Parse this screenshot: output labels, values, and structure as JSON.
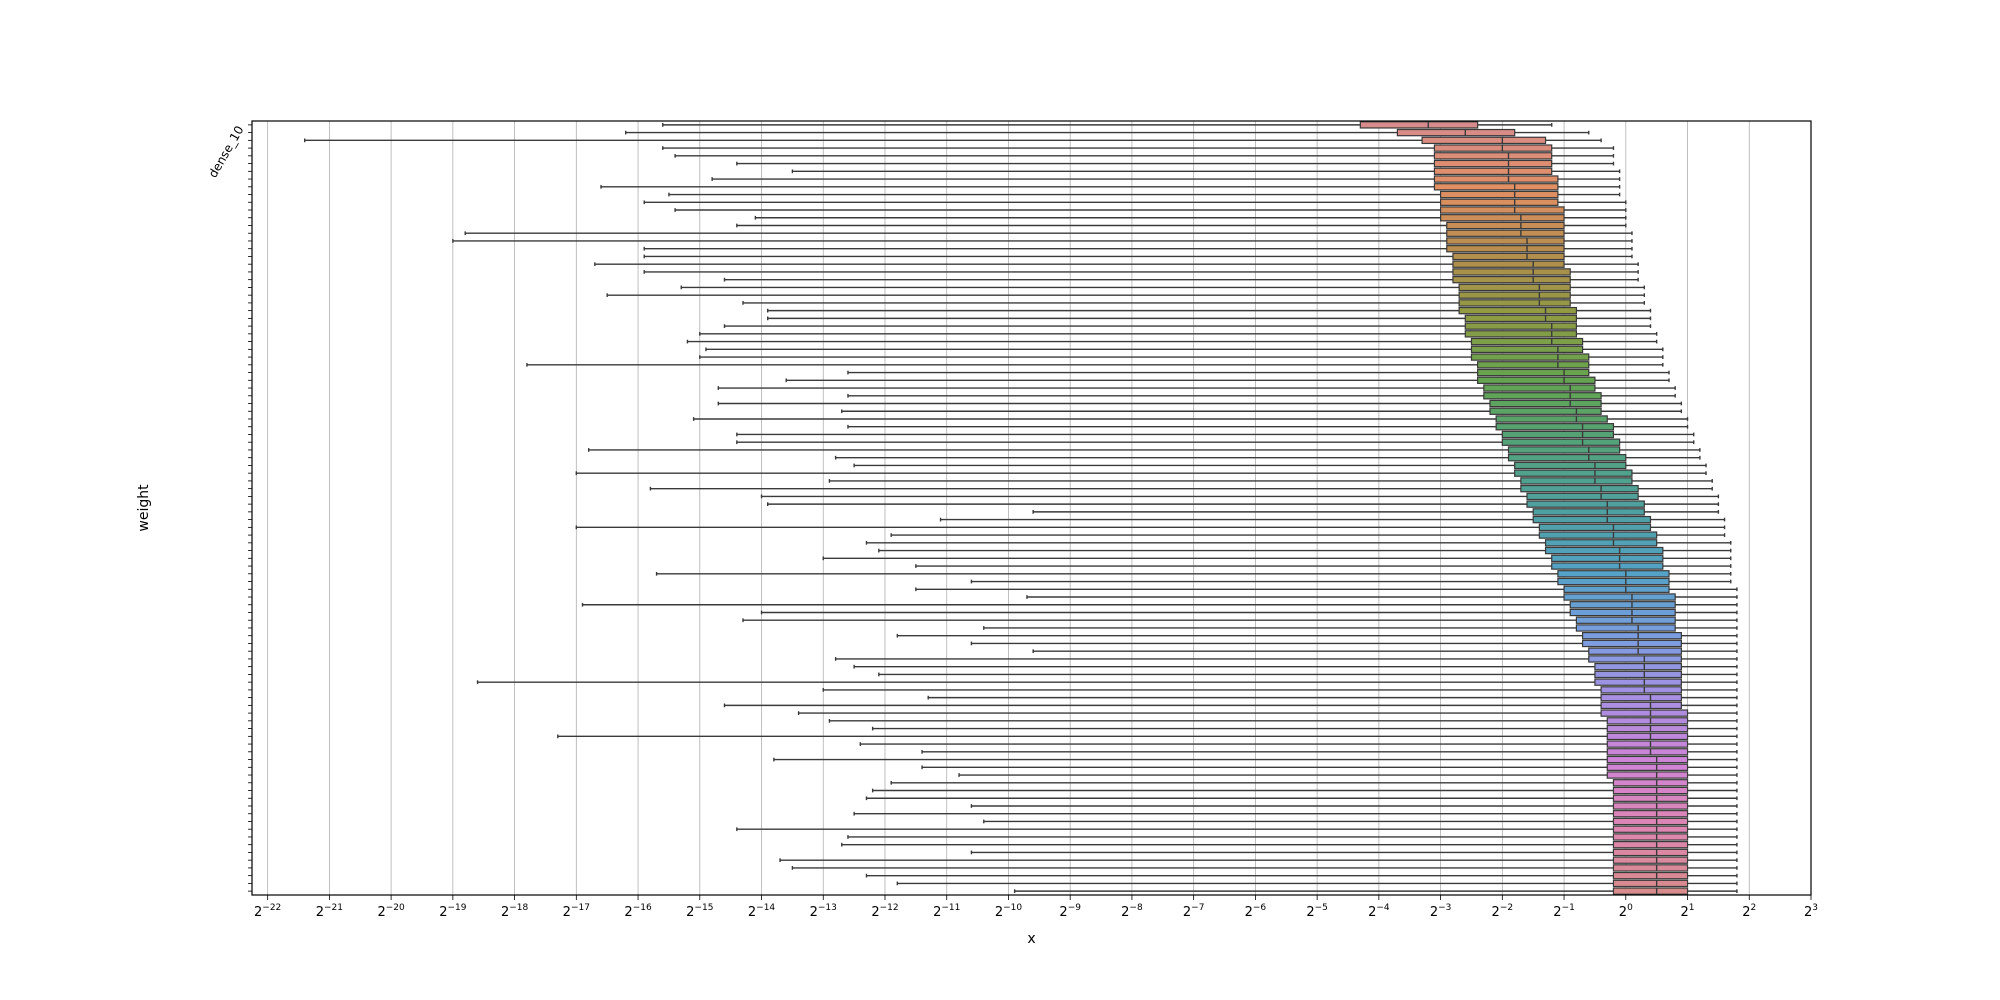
{
  "chart_data": {
    "type": "box",
    "orientation": "horizontal",
    "xlabel": "x",
    "ylabel": "weight",
    "x_scale": "log2",
    "xlim": [
      2e-07,
      8
    ],
    "x_ticks": [
      {
        "base": "2",
        "exp": "−22"
      },
      {
        "base": "2",
        "exp": "−21"
      },
      {
        "base": "2",
        "exp": "−20"
      },
      {
        "base": "2",
        "exp": "−19"
      },
      {
        "base": "2",
        "exp": "−18"
      },
      {
        "base": "2",
        "exp": "−17"
      },
      {
        "base": "2",
        "exp": "−16"
      },
      {
        "base": "2",
        "exp": "−15"
      },
      {
        "base": "2",
        "exp": "−14"
      },
      {
        "base": "2",
        "exp": "−13"
      },
      {
        "base": "2",
        "exp": "−12"
      },
      {
        "base": "2",
        "exp": "−11"
      },
      {
        "base": "2",
        "exp": "−10"
      },
      {
        "base": "2",
        "exp": "−9"
      },
      {
        "base": "2",
        "exp": "−8"
      },
      {
        "base": "2",
        "exp": "−7"
      },
      {
        "base": "2",
        "exp": "−6"
      },
      {
        "base": "2",
        "exp": "−5"
      },
      {
        "base": "2",
        "exp": "−4"
      },
      {
        "base": "2",
        "exp": "−3"
      },
      {
        "base": "2",
        "exp": "−2"
      },
      {
        "base": "2",
        "exp": "−1"
      },
      {
        "base": "2",
        "exp": "0"
      },
      {
        "base": "2",
        "exp": "1"
      },
      {
        "base": "2",
        "exp": "2"
      },
      {
        "base": "2",
        "exp": "3"
      }
    ],
    "grid": "x",
    "category_count": 100,
    "first_category_label": "dense_10",
    "category_label_prefix": "dense",
    "whisker_min_exp2": [
      -15.6,
      -16.2,
      -21.4,
      -15.6,
      -15.4,
      -14.4,
      -13.5,
      -14.8,
      -16.6,
      -15.5,
      -15.9,
      -15.4,
      -14.1,
      -14.4,
      -18.8,
      -19.0,
      -15.9,
      -15.9,
      -16.7,
      -15.9,
      -14.6,
      -15.3,
      -16.5,
      -14.3,
      -13.9,
      -13.9,
      -14.6,
      -15.0,
      -15.2,
      -14.9,
      -15.0,
      -17.8,
      -12.6,
      -13.6,
      -14.7,
      -12.6,
      -14.7,
      -12.7,
      -15.1,
      -12.6,
      -14.4,
      -14.4,
      -16.8,
      -12.8,
      -12.5,
      -17.0,
      -12.9,
      -15.8,
      -14.0,
      -13.9,
      -9.6,
      -11.1,
      -17.0,
      -11.9,
      -12.3,
      -12.1,
      -13.0,
      -11.5,
      -15.7,
      -10.6,
      -11.5,
      -9.7,
      -16.9,
      -14.0,
      -14.3,
      -10.4,
      -11.8,
      -10.6,
      -9.6,
      -12.8,
      -12.5,
      -12.1,
      -18.6,
      -13.0,
      -11.3,
      -14.6,
      -13.4,
      -12.9,
      -12.2,
      -17.3,
      -12.4,
      -11.4,
      -13.8,
      -11.4,
      -10.8,
      -11.9,
      -12.2,
      -12.3,
      -10.6,
      -12.5,
      -10.4,
      -14.4,
      -12.6,
      -12.7,
      -10.6,
      -13.7,
      -13.5,
      -12.3,
      -11.8,
      -9.9
    ],
    "q1_exp2": [
      -4.3,
      -3.7,
      -3.3,
      -3.1,
      -3.1,
      -3.1,
      -3.1,
      -3.1,
      -3.1,
      -3.0,
      -3.0,
      -3.0,
      -3.0,
      -2.9,
      -2.9,
      -2.9,
      -2.9,
      -2.8,
      -2.8,
      -2.8,
      -2.8,
      -2.7,
      -2.7,
      -2.7,
      -2.7,
      -2.6,
      -2.6,
      -2.6,
      -2.5,
      -2.5,
      -2.5,
      -2.4,
      -2.4,
      -2.4,
      -2.3,
      -2.3,
      -2.2,
      -2.2,
      -2.1,
      -2.1,
      -2.0,
      -2.0,
      -1.9,
      -1.9,
      -1.8,
      -1.8,
      -1.7,
      -1.7,
      -1.6,
      -1.6,
      -1.5,
      -1.5,
      -1.4,
      -1.4,
      -1.3,
      -1.3,
      -1.2,
      -1.2,
      -1.1,
      -1.1,
      -1.0,
      -1.0,
      -0.9,
      -0.9,
      -0.8,
      -0.8,
      -0.7,
      -0.7,
      -0.6,
      -0.6,
      -0.5,
      -0.5,
      -0.5,
      -0.4,
      -0.4,
      -0.4,
      -0.4,
      -0.3,
      -0.3,
      -0.3,
      -0.3,
      -0.3,
      -0.3,
      -0.3,
      -0.3,
      -0.2,
      -0.2,
      -0.2,
      -0.2,
      -0.2,
      -0.2,
      -0.2,
      -0.2,
      -0.2,
      -0.2,
      -0.2,
      -0.2,
      -0.2,
      -0.2,
      -0.2
    ],
    "median_exp2": [
      -3.2,
      -2.6,
      -2.0,
      -2.0,
      -1.9,
      -1.9,
      -1.9,
      -1.9,
      -1.8,
      -1.8,
      -1.8,
      -1.8,
      -1.7,
      -1.7,
      -1.7,
      -1.6,
      -1.6,
      -1.6,
      -1.5,
      -1.5,
      -1.5,
      -1.4,
      -1.4,
      -1.4,
      -1.3,
      -1.3,
      -1.2,
      -1.2,
      -1.2,
      -1.1,
      -1.1,
      -1.1,
      -1.0,
      -1.0,
      -0.9,
      -0.9,
      -0.9,
      -0.8,
      -0.8,
      -0.7,
      -0.7,
      -0.7,
      -0.6,
      -0.6,
      -0.5,
      -0.5,
      -0.5,
      -0.4,
      -0.4,
      -0.3,
      -0.3,
      -0.3,
      -0.2,
      -0.2,
      -0.2,
      -0.1,
      -0.1,
      -0.1,
      0.0,
      0.0,
      0.0,
      0.1,
      0.1,
      0.1,
      0.1,
      0.2,
      0.2,
      0.2,
      0.2,
      0.3,
      0.3,
      0.3,
      0.3,
      0.3,
      0.4,
      0.4,
      0.4,
      0.4,
      0.4,
      0.4,
      0.4,
      0.4,
      0.5,
      0.5,
      0.5,
      0.5,
      0.5,
      0.5,
      0.5,
      0.5,
      0.5,
      0.5,
      0.5,
      0.5,
      0.5,
      0.5,
      0.5,
      0.5,
      0.5,
      0.5
    ],
    "q3_exp2": [
      -2.4,
      -1.8,
      -1.3,
      -1.2,
      -1.2,
      -1.2,
      -1.2,
      -1.1,
      -1.1,
      -1.1,
      -1.1,
      -1.0,
      -1.0,
      -1.0,
      -1.0,
      -1.0,
      -1.0,
      -1.0,
      -1.0,
      -0.9,
      -0.9,
      -0.9,
      -0.9,
      -0.9,
      -0.8,
      -0.8,
      -0.8,
      -0.8,
      -0.7,
      -0.7,
      -0.6,
      -0.6,
      -0.6,
      -0.5,
      -0.5,
      -0.4,
      -0.4,
      -0.4,
      -0.3,
      -0.2,
      -0.2,
      -0.1,
      -0.1,
      0.0,
      0.0,
      0.1,
      0.1,
      0.2,
      0.2,
      0.3,
      0.3,
      0.4,
      0.4,
      0.5,
      0.5,
      0.6,
      0.6,
      0.6,
      0.7,
      0.7,
      0.7,
      0.8,
      0.8,
      0.8,
      0.8,
      0.8,
      0.9,
      0.9,
      0.9,
      0.9,
      0.9,
      0.9,
      0.9,
      0.9,
      0.9,
      0.9,
      1.0,
      1.0,
      1.0,
      1.0,
      1.0,
      1.0,
      1.0,
      1.0,
      1.0,
      1.0,
      1.0,
      1.0,
      1.0,
      1.0,
      1.0,
      1.0,
      1.0,
      1.0,
      1.0,
      1.0,
      1.0,
      1.0,
      1.0,
      1.0
    ],
    "whisker_max_exp2": [
      -1.2,
      -0.6,
      -0.4,
      -0.2,
      -0.2,
      -0.2,
      -0.1,
      -0.1,
      -0.1,
      -0.1,
      0.0,
      0.0,
      0.0,
      0.0,
      0.1,
      0.1,
      0.1,
      0.1,
      0.2,
      0.2,
      0.2,
      0.3,
      0.3,
      0.3,
      0.4,
      0.4,
      0.4,
      0.5,
      0.5,
      0.6,
      0.6,
      0.6,
      0.7,
      0.7,
      0.8,
      0.8,
      0.9,
      0.9,
      1.0,
      1.0,
      1.1,
      1.1,
      1.2,
      1.2,
      1.3,
      1.3,
      1.4,
      1.4,
      1.5,
      1.5,
      1.5,
      1.6,
      1.6,
      1.6,
      1.7,
      1.7,
      1.7,
      1.7,
      1.7,
      1.7,
      1.8,
      1.8,
      1.8,
      1.8,
      1.8,
      1.8,
      1.8,
      1.8,
      1.8,
      1.8,
      1.8,
      1.8,
      1.8,
      1.8,
      1.8,
      1.8,
      1.8,
      1.8,
      1.8,
      1.8,
      1.8,
      1.8,
      1.8,
      1.8,
      1.8,
      1.8,
      1.8,
      1.8,
      1.8,
      1.8,
      1.8,
      1.8,
      1.8,
      1.8,
      1.8,
      1.8,
      1.8,
      1.8,
      1.8,
      1.8
    ],
    "palette": [
      "#d88b8b",
      "#e28f63",
      "#b68d4d",
      "#8e9b43",
      "#64a450",
      "#52a37b",
      "#4ea1a0",
      "#53a2c6",
      "#7b9ee0",
      "#a88fe3",
      "#d083d6",
      "#de86b2",
      "#d88b8b"
    ]
  }
}
